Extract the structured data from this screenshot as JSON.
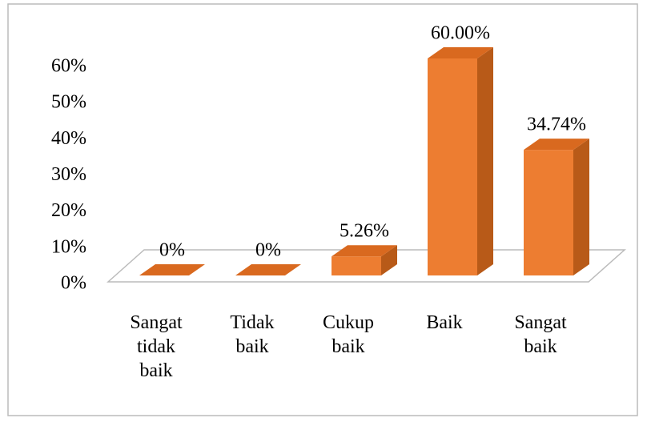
{
  "chart_data": {
    "type": "bar3d",
    "categories": [
      "Sangat tidak baik",
      "Tidak baik",
      "Cukup baik",
      "Baik",
      "Sangat baik"
    ],
    "values": [
      0,
      0,
      5.26,
      60,
      34.74
    ],
    "value_labels": [
      "0%",
      "0%",
      "5.26%",
      "60.00%",
      "34.74%"
    ],
    "color": "#ed7d31",
    "ylim": [
      0,
      60
    ],
    "yticks": [
      {
        "value": 0,
        "label": "0%"
      },
      {
        "value": 10,
        "label": "10%"
      },
      {
        "value": 20,
        "label": "20%"
      },
      {
        "value": 30,
        "label": "30%"
      },
      {
        "value": 40,
        "label": "40%"
      },
      {
        "value": 50,
        "label": "50%"
      },
      {
        "value": 60,
        "label": "60%"
      }
    ],
    "grid": false
  }
}
